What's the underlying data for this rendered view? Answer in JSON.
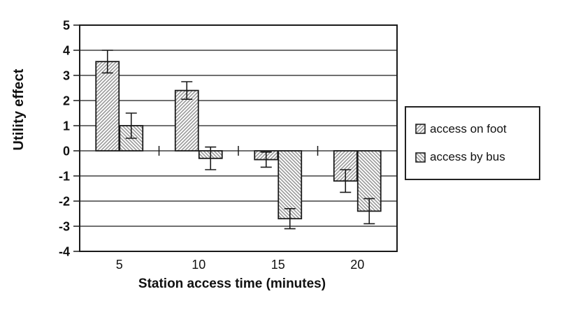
{
  "chart_data": {
    "type": "bar",
    "title": "",
    "xlabel": "Station access time (minutes)",
    "ylabel": "Utility effect",
    "categories": [
      "5",
      "10",
      "15",
      "20"
    ],
    "series": [
      {
        "name": "access on foot",
        "hatch": "/",
        "values": [
          3.55,
          2.4,
          -0.35,
          -1.2
        ],
        "errors": [
          0.45,
          0.35,
          0.3,
          0.45
        ]
      },
      {
        "name": "access by bus",
        "hatch": "\\",
        "values": [
          1.0,
          -0.3,
          -2.7,
          -2.4
        ],
        "errors": [
          0.5,
          0.45,
          0.4,
          0.5
        ]
      }
    ],
    "ylim": [
      -4,
      5
    ],
    "ytick_step": 1,
    "grid": true,
    "legend_position": "right",
    "error_bars": true
  },
  "colors": {
    "axis": "#1a1a1a",
    "gridline": "#1a1a1a",
    "bar_border": "#1a1a1a",
    "hatch": "#9a9a9a",
    "bar_fill": "#ffffff",
    "background": "#ffffff"
  }
}
